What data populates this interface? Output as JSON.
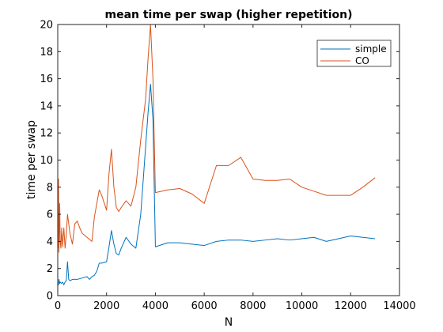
{
  "chart_data": {
    "type": "line",
    "title": "mean time per swap (higher repetition)",
    "xlabel": "N",
    "ylabel": "time per swap",
    "xlim": [
      0,
      14000
    ],
    "ylim": [
      0,
      20
    ],
    "xticks": [
      0,
      2000,
      4000,
      6000,
      8000,
      10000,
      12000,
      14000
    ],
    "xtick_labels": [
      "0",
      "2000",
      "4000",
      "6000",
      "8000",
      "10000",
      "12000",
      "14000"
    ],
    "yticks": [
      0,
      2,
      4,
      6,
      8,
      10,
      12,
      14,
      16,
      18,
      20
    ],
    "ytick_labels": [
      "0",
      "2",
      "4",
      "6",
      "8",
      "10",
      "12",
      "14",
      "16",
      "18",
      "20"
    ],
    "grid": false,
    "legend_position": "top-right",
    "series": [
      {
        "name": "simple",
        "color": "#0072bd",
        "x": [
          10,
          30,
          50,
          80,
          100,
          150,
          200,
          250,
          300,
          350,
          400,
          450,
          500,
          600,
          800,
          1000,
          1200,
          1300,
          1400,
          1500,
          1600,
          1700,
          1800,
          2000,
          2100,
          2200,
          2300,
          2400,
          2500,
          2600,
          2800,
          3000,
          3200,
          3400,
          3600,
          3700,
          3800,
          3900,
          4000,
          4500,
          5000,
          5500,
          6000,
          6500,
          7000,
          7500,
          8000,
          8500,
          9000,
          9500,
          10000,
          10500,
          11000,
          11500,
          12000,
          12500,
          13000
        ],
        "y": [
          0.9,
          0.8,
          1.2,
          0.9,
          1.0,
          0.9,
          1.0,
          0.8,
          1.0,
          1.1,
          2.5,
          1.2,
          1.1,
          1.2,
          1.2,
          1.3,
          1.4,
          1.2,
          1.4,
          1.5,
          1.8,
          2.4,
          2.4,
          2.5,
          3.6,
          4.8,
          3.8,
          3.1,
          3.0,
          3.5,
          4.3,
          3.8,
          3.5,
          6.0,
          11.0,
          13.5,
          15.6,
          13.0,
          3.6,
          3.9,
          3.9,
          3.8,
          3.7,
          4.0,
          4.1,
          4.1,
          4.0,
          4.1,
          4.2,
          4.1,
          4.2,
          4.3,
          4.0,
          4.2,
          4.4,
          4.3,
          4.2
        ]
      },
      {
        "name": "CO",
        "color": "#d95319",
        "x": [
          10,
          30,
          50,
          80,
          100,
          130,
          160,
          200,
          250,
          300,
          350,
          400,
          450,
          500,
          600,
          700,
          800,
          900,
          1000,
          1200,
          1400,
          1500,
          1700,
          1800,
          2000,
          2100,
          2200,
          2300,
          2400,
          2500,
          2600,
          2800,
          3000,
          3200,
          3400,
          3600,
          3700,
          3800,
          3900,
          4000,
          4500,
          5000,
          5500,
          6000,
          6500,
          7000,
          7500,
          8000,
          8500,
          9000,
          9500,
          10000,
          10500,
          11000,
          11500,
          12000,
          12500,
          13000
        ],
        "y": [
          3.5,
          8.6,
          3.2,
          6.8,
          4.0,
          3.5,
          5.0,
          3.6,
          5.0,
          3.5,
          4.5,
          6.0,
          5.3,
          4.6,
          3.8,
          5.3,
          5.5,
          5.0,
          4.6,
          4.3,
          4.0,
          5.8,
          7.8,
          7.4,
          6.3,
          9.0,
          10.8,
          8.0,
          6.5,
          6.2,
          6.5,
          7.0,
          6.6,
          8.0,
          11.5,
          14.5,
          17.5,
          20.0,
          16.0,
          7.6,
          7.8,
          7.9,
          7.5,
          6.8,
          9.6,
          9.6,
          10.2,
          8.6,
          8.5,
          8.5,
          8.6,
          8.0,
          7.7,
          7.4,
          7.4,
          7.4,
          8.0,
          8.7
        ]
      }
    ]
  }
}
